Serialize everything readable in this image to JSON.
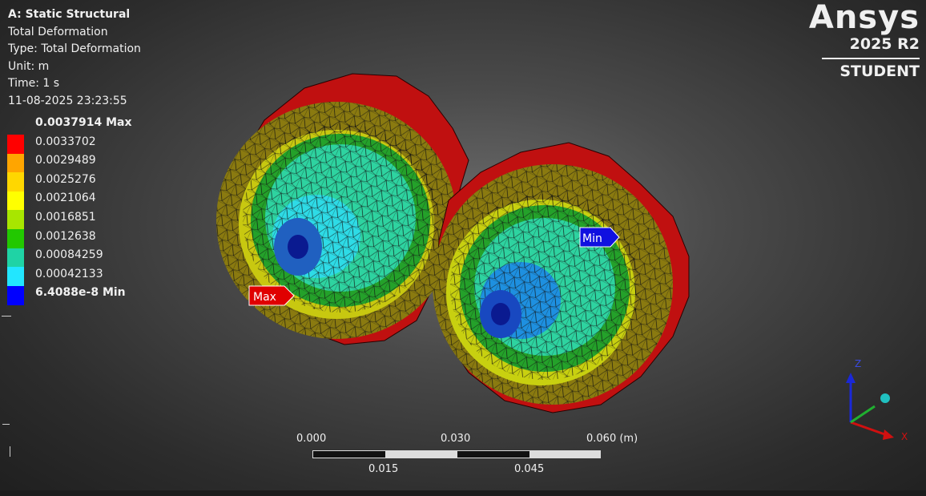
{
  "info": {
    "title": "A: Static Structural",
    "result_name": "Total Deformation",
    "type": "Type: Total Deformation",
    "unit": "Unit: m",
    "time": "Time: 1 s",
    "timestamp": "11-08-2025 23:23:55"
  },
  "legend": {
    "entries": [
      {
        "label": "0.0037914 Max",
        "color": "#ff0000"
      },
      {
        "label": "0.0033702",
        "color": "#ffa500"
      },
      {
        "label": "0.0029489",
        "color": "#ffd700"
      },
      {
        "label": "0.0025276",
        "color": "#ffff00"
      },
      {
        "label": "0.0021064",
        "color": "#a8e600"
      },
      {
        "label": "0.0016851",
        "color": "#22c800"
      },
      {
        "label": "0.0012638",
        "color": "#1fd3a5"
      },
      {
        "label": "0.00084259",
        "color": "#22e6ff"
      },
      {
        "label": "0.00042133",
        "color": "#1e90ff"
      },
      {
        "label": "6.4088e-8 Min",
        "color": "#0000ff"
      }
    ]
  },
  "brand": {
    "logo": "Ansys",
    "version": "2025 R2",
    "edition": "STUDENT"
  },
  "probes": {
    "max_label": "Max",
    "min_label": "Min",
    "max_color": "#e00000",
    "min_color": "#1010e0"
  },
  "scale_bar": {
    "top_labels": [
      "0.000",
      "0.030",
      "0.060 (m)"
    ],
    "bottom_labels": [
      "0.015",
      "0.045"
    ]
  },
  "triad": {
    "z_label": "Z",
    "x_label": "X"
  }
}
